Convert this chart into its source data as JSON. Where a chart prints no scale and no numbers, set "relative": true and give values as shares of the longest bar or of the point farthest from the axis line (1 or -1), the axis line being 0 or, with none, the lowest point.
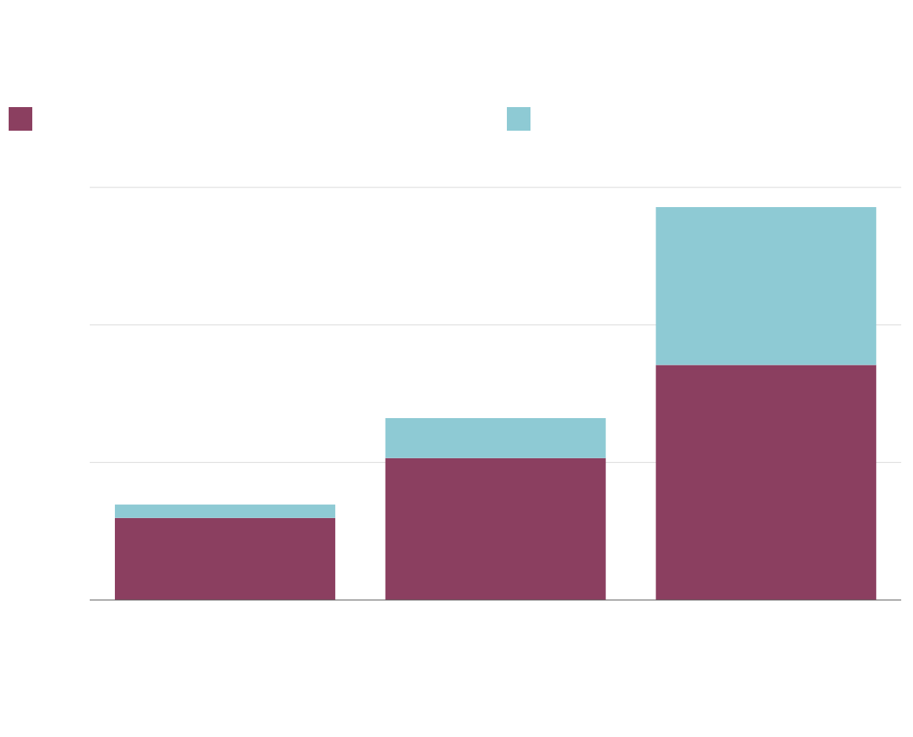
{
  "chart_data": {
    "type": "bar",
    "stacked": true,
    "relative": true,
    "categories": [
      null,
      null,
      null
    ],
    "series": [
      {
        "color": "#8b3f60",
        "values": [
          0.209,
          0.361,
          0.598
        ]
      },
      {
        "color": "#8ecad4",
        "values": [
          0.034,
          0.102,
          0.402
        ]
      }
    ],
    "ref_lines": [
      {
        "axis": "y",
        "value": 0.35,
        "color": "#d9d9d9"
      },
      {
        "axis": "y",
        "value": 0.7,
        "color": "#d9d9d9"
      },
      {
        "axis": "y",
        "value": 1.05,
        "color": "#d9d9d9"
      }
    ]
  }
}
